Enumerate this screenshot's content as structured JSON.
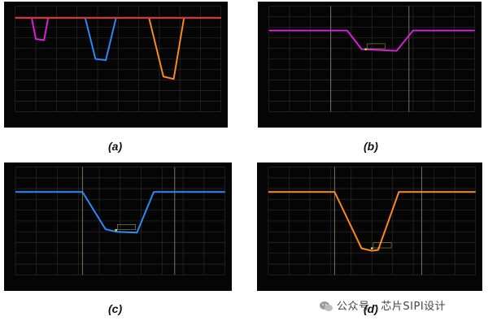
{
  "captions": {
    "a": "(a)",
    "b": "(b)",
    "c": "(c)",
    "d": "(d)"
  },
  "watermark": {
    "text": "公众号 · 芯片SIPI设计",
    "icon": "wechat-icon"
  },
  "colors": {
    "background": "#050505",
    "grid": "#2b2b2b",
    "cursor": "#7a7a5a",
    "magenta": "#e020e0",
    "blue": "#2a8cff",
    "orange": "#ff8c1a",
    "red": "#e03030",
    "marker": "#d8d84a"
  },
  "chart_data": [
    {
      "id": "a",
      "type": "line",
      "grid": true,
      "ylim": [
        -8,
        1
      ],
      "xlim": [
        0,
        10
      ],
      "series": [
        {
          "color": "#ff8c1a",
          "points": [
            [
              0,
              0
            ],
            [
              6.5,
              0
            ],
            [
              7.2,
              -5
            ],
            [
              7.7,
              -5.2
            ],
            [
              8.2,
              0
            ],
            [
              10,
              0
            ]
          ]
        },
        {
          "color": "#2a8cff",
          "points": [
            [
              0,
              0
            ],
            [
              3.4,
              0
            ],
            [
              3.9,
              -3.5
            ],
            [
              4.4,
              -3.6
            ],
            [
              4.9,
              0
            ],
            [
              10,
              0
            ]
          ]
        },
        {
          "color": "#e020e0",
          "points": [
            [
              0,
              0
            ],
            [
              0.8,
              0
            ],
            [
              1.0,
              -1.8
            ],
            [
              1.4,
              -1.9
            ],
            [
              1.6,
              0
            ],
            [
              10,
              0
            ]
          ]
        },
        {
          "color": "#e03030",
          "points": [
            [
              0,
              0
            ],
            [
              10,
              0
            ]
          ]
        }
      ]
    },
    {
      "id": "b",
      "type": "line",
      "grid": true,
      "ylim": [
        -10,
        3
      ],
      "xlim": [
        0,
        10
      ],
      "cursors": [
        3.0,
        6.8
      ],
      "series": [
        {
          "color": "#e020e0",
          "points": [
            [
              0,
              0
            ],
            [
              3.8,
              0
            ],
            [
              4.5,
              -2.3
            ],
            [
              6.2,
              -2.5
            ],
            [
              7.0,
              0
            ],
            [
              10,
              0
            ]
          ]
        }
      ],
      "marker": {
        "x": 4.7,
        "y": -2.3
      }
    },
    {
      "id": "c",
      "type": "line",
      "grid": true,
      "ylim": [
        -10,
        3
      ],
      "xlim": [
        0,
        10
      ],
      "cursors": [
        3.2,
        7.6
      ],
      "series": [
        {
          "color": "#2a8cff",
          "points": [
            [
              0,
              0
            ],
            [
              3.2,
              0
            ],
            [
              4.3,
              -4.5
            ],
            [
              4.8,
              -4.8
            ],
            [
              5.8,
              -4.9
            ],
            [
              6.6,
              0
            ],
            [
              10,
              0
            ]
          ]
        }
      ],
      "marker": {
        "x": 4.8,
        "y": -4.6
      }
    },
    {
      "id": "d",
      "type": "line",
      "grid": true,
      "ylim": [
        -10,
        3
      ],
      "xlim": [
        0,
        10
      ],
      "cursors": [
        3.2,
        7.4
      ],
      "series": [
        {
          "color": "#ff8c1a",
          "points": [
            [
              0,
              0
            ],
            [
              3.2,
              0
            ],
            [
              4.5,
              -6.8
            ],
            [
              5.0,
              -7.1
            ],
            [
              5.3,
              -7.0
            ],
            [
              6.3,
              0
            ],
            [
              10,
              0
            ]
          ]
        }
      ],
      "marker": {
        "x": 5.0,
        "y": -6.8
      }
    }
  ]
}
